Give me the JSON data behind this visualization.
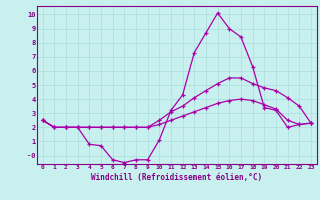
{
  "xlabel": "Windchill (Refroidissement éolien,°C)",
  "background_color": "#c8f0ee",
  "grid_color": "#aadddd",
  "line_color": "#aa00aa",
  "x_hours": [
    0,
    1,
    2,
    3,
    4,
    5,
    6,
    7,
    8,
    9,
    10,
    11,
    12,
    13,
    14,
    15,
    16,
    17,
    18,
    19,
    20,
    21,
    22,
    23
  ],
  "line1": [
    2.5,
    2.0,
    2.0,
    2.0,
    0.8,
    0.7,
    -0.3,
    -0.5,
    -0.3,
    -0.3,
    1.1,
    3.2,
    4.3,
    7.3,
    8.7,
    10.1,
    9.0,
    8.4,
    6.3,
    3.4,
    3.2,
    2.0,
    2.2,
    2.3
  ],
  "line2": [
    2.5,
    2.0,
    2.0,
    2.0,
    2.0,
    2.0,
    2.0,
    2.0,
    2.0,
    2.0,
    2.5,
    3.1,
    3.5,
    4.1,
    4.6,
    5.1,
    5.5,
    5.5,
    5.1,
    4.8,
    4.6,
    4.1,
    3.5,
    2.3
  ],
  "line3": [
    2.5,
    2.0,
    2.0,
    2.0,
    2.0,
    2.0,
    2.0,
    2.0,
    2.0,
    2.0,
    2.2,
    2.5,
    2.8,
    3.1,
    3.4,
    3.7,
    3.9,
    4.0,
    3.9,
    3.6,
    3.3,
    2.5,
    2.2,
    2.3
  ],
  "ylim": [
    -0.6,
    10.6
  ],
  "yticks": [
    0,
    1,
    2,
    3,
    4,
    5,
    6,
    7,
    8,
    9,
    10
  ],
  "xlim": [
    -0.5,
    23.5
  ],
  "font_color": "#880088"
}
